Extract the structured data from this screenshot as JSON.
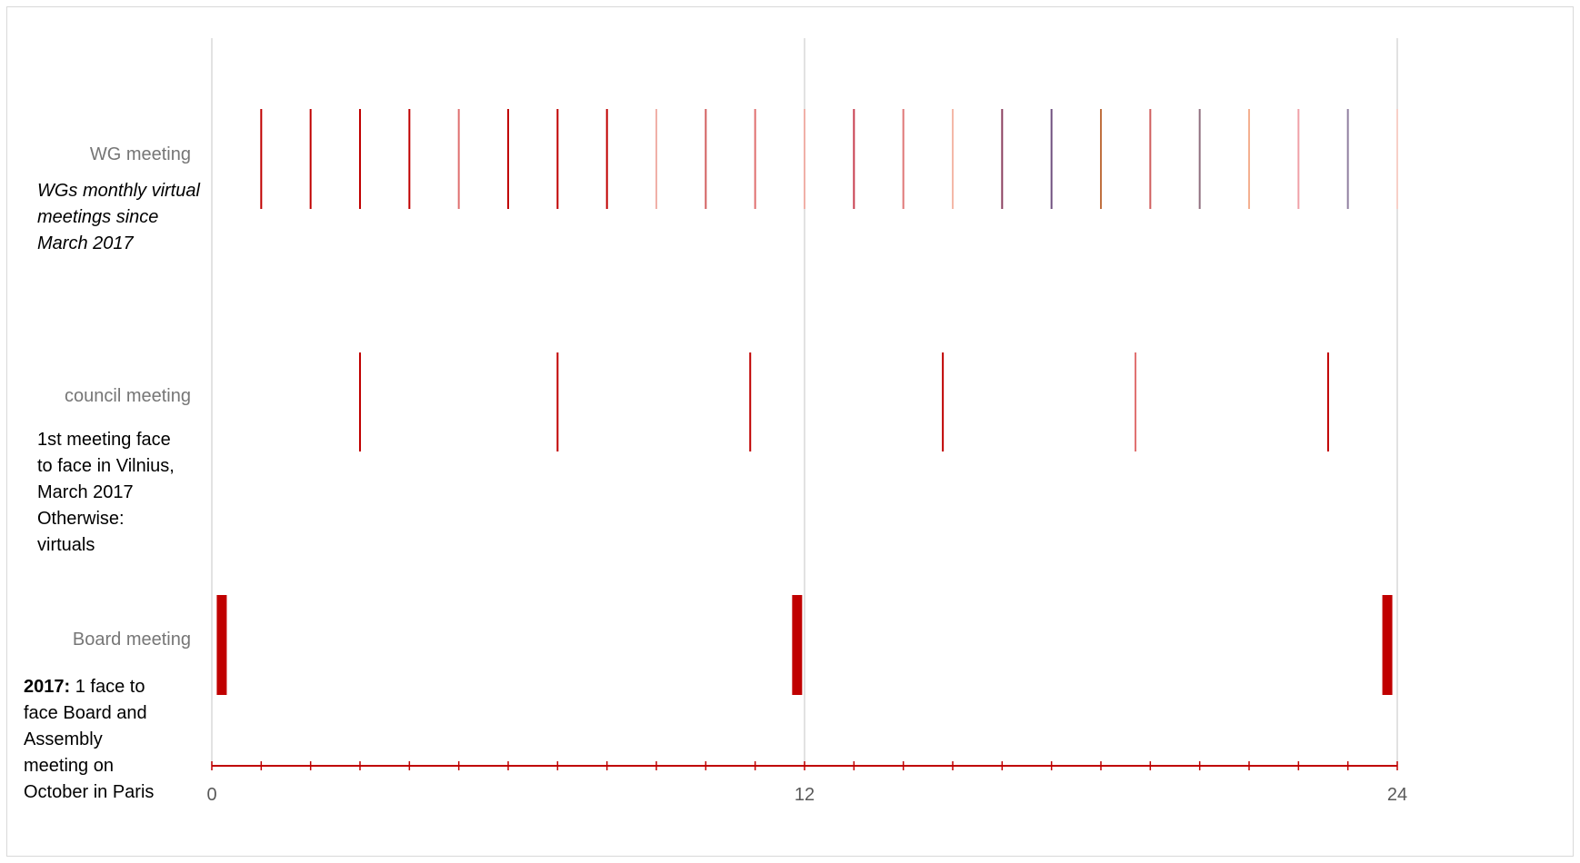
{
  "chart_data": {
    "type": "timeline",
    "x": {
      "min": 0,
      "max": 24,
      "ticks": [
        0,
        12,
        24
      ],
      "grid": true
    },
    "categories": [
      "WG meeting",
      "council meeting",
      "Board meeting"
    ],
    "series": [
      {
        "category": "WG meeting",
        "events": [
          {
            "x": 1,
            "color": "#C00000"
          },
          {
            "x": 2,
            "color": "#C00000"
          },
          {
            "x": 3,
            "color": "#C00000"
          },
          {
            "x": 4,
            "color": "#C00000"
          },
          {
            "x": 5,
            "color": "#E07070"
          },
          {
            "x": 6,
            "color": "#C00000"
          },
          {
            "x": 7,
            "color": "#C00000"
          },
          {
            "x": 8,
            "color": "#C00000"
          },
          {
            "x": 9,
            "color": "#F0B0A8"
          },
          {
            "x": 10,
            "color": "#D26060"
          },
          {
            "x": 11,
            "color": "#E07070"
          },
          {
            "x": 12,
            "color": "#F0B0A8"
          },
          {
            "x": 13,
            "color": "#C84050"
          },
          {
            "x": 14,
            "color": "#E07878"
          },
          {
            "x": 15,
            "color": "#F4B8A8"
          },
          {
            "x": 16,
            "color": "#8C4060"
          },
          {
            "x": 17,
            "color": "#705080"
          },
          {
            "x": 18,
            "color": "#C07040"
          },
          {
            "x": 19,
            "color": "#D06060"
          },
          {
            "x": 20,
            "color": "#907080"
          },
          {
            "x": 21,
            "color": "#F4B090"
          },
          {
            "x": 22,
            "color": "#F0A0A8"
          },
          {
            "x": 23,
            "color": "#9080A0"
          },
          {
            "x": 24,
            "color": "#F8D0C8"
          }
        ]
      },
      {
        "category": "council meeting",
        "events": [
          {
            "x": 3,
            "color": "#C00000"
          },
          {
            "x": 7,
            "color": "#C00000"
          },
          {
            "x": 10.9,
            "color": "#C00000"
          },
          {
            "x": 14.8,
            "color": "#C00000"
          },
          {
            "x": 18.7,
            "color": "#E07070"
          },
          {
            "x": 22.6,
            "color": "#C00000"
          }
        ]
      },
      {
        "category": "Board meeting",
        "events": [
          {
            "x": 0.1,
            "color": "#C00000"
          },
          {
            "x": 11.85,
            "color": "#C00000"
          },
          {
            "x": 23.9,
            "color": "#C00000"
          }
        ]
      }
    ]
  },
  "notes": {
    "wg": "WGs monthly virtual meetings since March 2017",
    "council": [
      "1st meeting face",
      "to face in Vilnius,",
      "March 2017",
      "Otherwise:",
      "virtuals"
    ],
    "board_bold": "2017:",
    "board_rest": [
      "1 face to",
      "face Board and",
      "Assembly",
      "meeting on",
      "October in Paris"
    ]
  }
}
